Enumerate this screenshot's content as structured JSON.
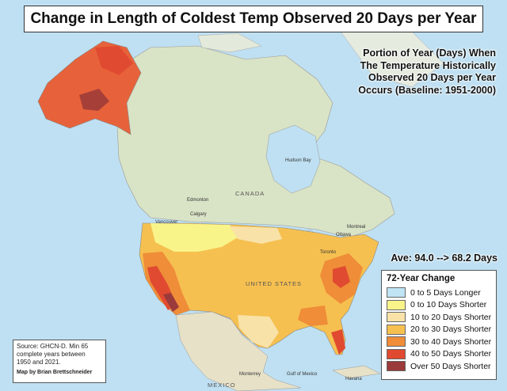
{
  "title": "Change in Length of Coldest Temp Observed 20 Days per Year",
  "subtitle_lines": [
    "Portion of Year (Days) When",
    "The Temperature Historically",
    "Observed 20 Days per Year",
    "Occurs (Baseline: 1951-2000)"
  ],
  "average": "Ave: 94.0 --> 68.2 Days",
  "legend": {
    "title": "72-Year Change",
    "items": [
      {
        "label": "0 to 5 Days Longer",
        "color": "#bfe4f4"
      },
      {
        "label": "0 to 10 Days Shorter",
        "color": "#f8f48a"
      },
      {
        "label": "10 to 20 Days Shorter",
        "color": "#f8e2a8"
      },
      {
        "label": "20 to 30 Days Shorter",
        "color": "#f6c050"
      },
      {
        "label": "30 to 40 Days Shorter",
        "color": "#ef8d38"
      },
      {
        "label": "40 to 50 Days Shorter",
        "color": "#e04a30"
      },
      {
        "label": "Over 50  Days Shorter",
        "color": "#9b3a3a"
      }
    ]
  },
  "source": {
    "lines": [
      "Source: GHCN-D. Min 65",
      "complete years between",
      "1950 and 2021."
    ],
    "credit": "Map by Brian Brettschneider"
  },
  "places": {
    "canada": "CANADA",
    "united_states": "UNITED STATES",
    "mexico": "MEXICO",
    "gulf": "Gulf of Mexico",
    "edmonton": "Edmonton",
    "calgary": "Calgary",
    "vancouver": "Vancouver",
    "monterrey": "Monterrey",
    "havana": "Havana",
    "hudson_bay": "Hudson Bay",
    "ottawa": "Ottawa",
    "montreal": "Montreal",
    "toronto": "Toronto"
  },
  "colors": {
    "ocean": "#bfe0f2",
    "land": "#d9e3c6",
    "mexico_land": "#e7e1c8"
  }
}
